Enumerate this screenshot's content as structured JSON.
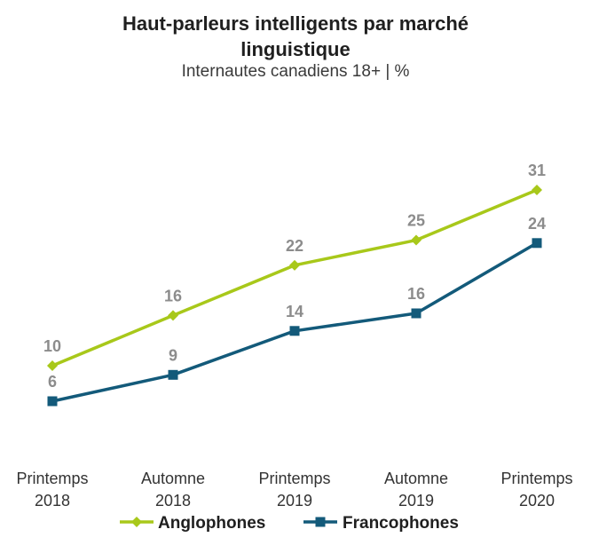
{
  "chart_data": {
    "type": "line",
    "title_line1": "Haut-parleurs intelligents par marché",
    "title_line2": "linguistique",
    "subtitle": "Internautes canadiens 18+ | %",
    "categories": [
      [
        "Printemps",
        "2018"
      ],
      [
        "Automne",
        "2018"
      ],
      [
        "Printemps",
        "2019"
      ],
      [
        "Automne",
        "2019"
      ],
      [
        "Printemps",
        "2020"
      ]
    ],
    "series": [
      {
        "name": "Anglophones",
        "values": [
          10,
          16,
          22,
          25,
          31
        ],
        "color": "#a8c81a",
        "marker": "diamond"
      },
      {
        "name": "Francophones",
        "values": [
          6,
          9,
          14,
          16,
          24
        ],
        "color": "#135a7a",
        "marker": "square"
      }
    ],
    "legend_position": "bottom",
    "grid": false
  }
}
